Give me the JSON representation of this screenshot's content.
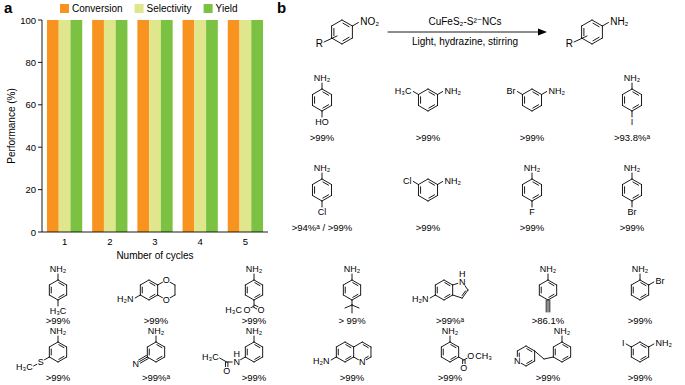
{
  "panel_labels": [
    "a",
    "b"
  ],
  "chart_data": {
    "type": "bar",
    "categories": [
      "1",
      "2",
      "3",
      "4",
      "5"
    ],
    "series": [
      {
        "name": "Conversion",
        "color": "#f7931e",
        "values": [
          100,
          100,
          100,
          100,
          100
        ]
      },
      {
        "name": "Selectivity",
        "color": "#dfe68b",
        "values": [
          100,
          100,
          100,
          100,
          100
        ]
      },
      {
        "name": "Yield",
        "color": "#7cc242",
        "values": [
          100,
          100,
          100,
          100,
          100
        ]
      }
    ],
    "x_label": "Number of cycles",
    "y_label": "Performance (%)",
    "ylim": [
      0,
      100
    ],
    "yticks": [
      0,
      20,
      40,
      60,
      80,
      100
    ],
    "grid": false,
    "legend": "top"
  },
  "scheme": {
    "reactant_labels": [
      "R",
      "NO₂"
    ],
    "reagent_top": "CuFeS₂-S²⁻NCs",
    "reagent_bottom": "Light, hydrazine, stirring",
    "product_labels": [
      "R",
      "NH₂"
    ],
    "products": [
      {
        "labels": [
          "NH₂",
          "HO"
        ],
        "yield": ">99%"
      },
      {
        "labels": [
          "H₃C",
          "NH₂"
        ],
        "yield": ">99%"
      },
      {
        "labels": [
          "Br",
          "NH₂"
        ],
        "yield": ">99%"
      },
      {
        "labels": [
          "NH₂",
          "I"
        ],
        "yield": ">93.8%ᵃ"
      },
      {
        "labels": [
          "NH₂",
          "Cl"
        ],
        "yield": ">94%ᵃ / >99%"
      },
      {
        "labels": [
          "Cl",
          "NH₂"
        ],
        "yield": ">99%"
      },
      {
        "labels": [
          "NH₂",
          "F"
        ],
        "yield": ">99%"
      },
      {
        "labels": [
          "NH₂",
          "Br"
        ],
        "yield": ">99%"
      },
      {
        "labels": [
          "NH₂",
          "H₃C"
        ],
        "yield": ">99%"
      },
      {
        "labels": [
          "H₂N",
          "O",
          "O"
        ],
        "yield": ">99%"
      },
      {
        "labels": [
          "NH₂",
          "H₃C",
          "O",
          "O"
        ],
        "yield": ">99%"
      },
      {
        "labels": [
          "NH₂"
        ],
        "yield": "> 99%"
      },
      {
        "labels": [
          "H₂N",
          "N",
          "H"
        ],
        "yield": ">99%ᵃ"
      },
      {
        "labels": [
          "NH₂"
        ],
        "yield": ">86.1%"
      },
      {
        "labels": [
          "NH₂",
          "Br"
        ],
        "yield": ">99%"
      },
      {
        "labels": [
          "NH₂",
          "H₃C",
          "S"
        ],
        "yield": ">99%"
      },
      {
        "labels": [
          "NH₂",
          "N"
        ],
        "yield": ">99%ᵃ"
      },
      {
        "labels": [
          "NH₂",
          "H",
          "N",
          "H₃C",
          "O"
        ],
        "yield": ">99%"
      },
      {
        "labels": [
          "H₂N",
          "N"
        ],
        "yield": ">99%"
      },
      {
        "labels": [
          "NH₂",
          "O",
          "O",
          "CH₃"
        ],
        "yield": ">99%"
      },
      {
        "labels": [
          "N",
          "NH₂"
        ],
        "yield": ">99%"
      },
      {
        "labels": [
          "I",
          "NH₂"
        ],
        "yield": ">99%"
      }
    ]
  }
}
